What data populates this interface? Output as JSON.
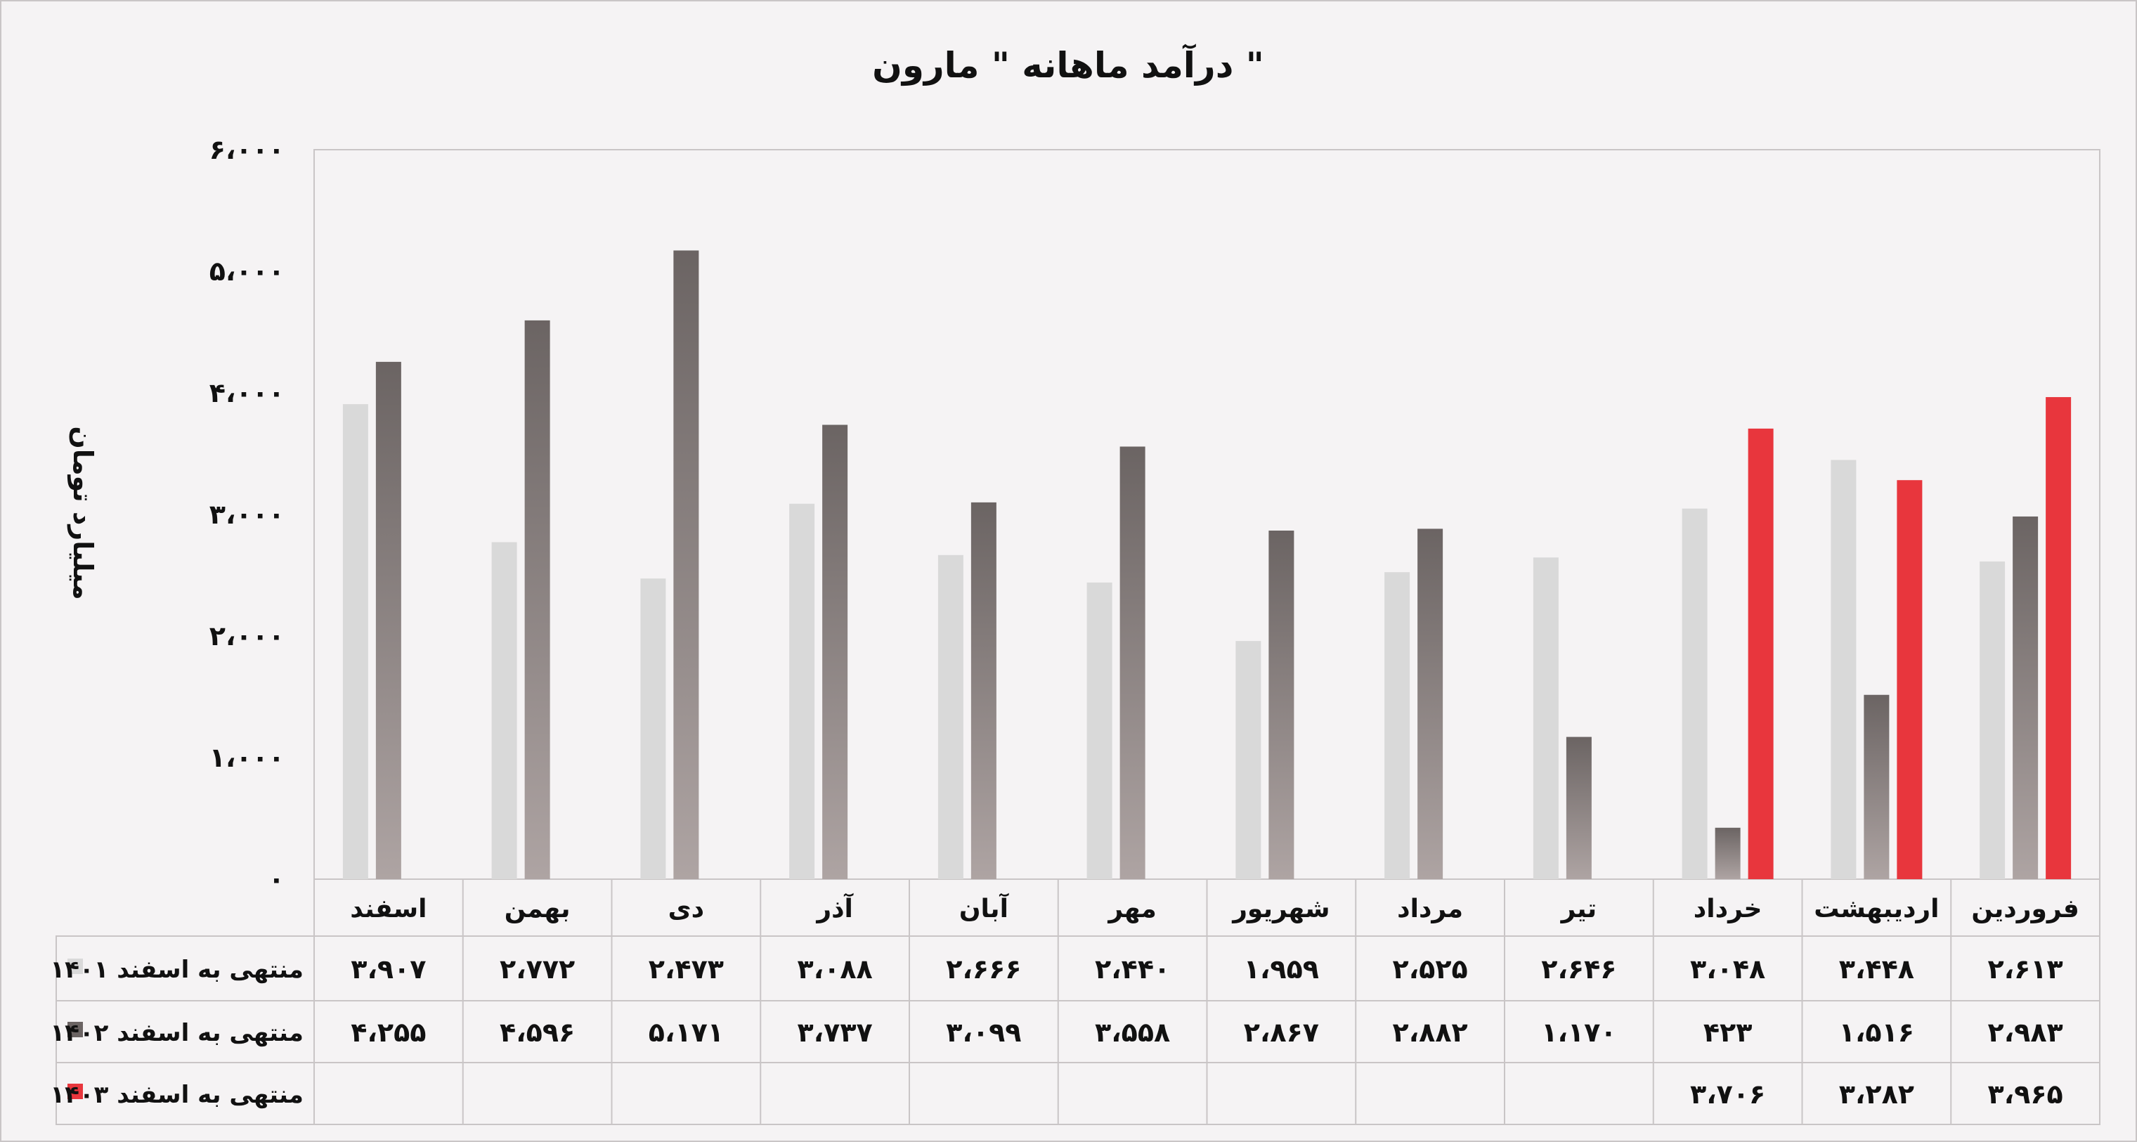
{
  "chart_data": {
    "type": "bar",
    "title": "درآمد ماهانه \" مارون \"",
    "ylabel": "میلیارد تومان",
    "ylim": [
      0,
      6000
    ],
    "yticks": [
      "۰",
      "۱،۰۰۰",
      "۲،۰۰۰",
      "۳،۰۰۰",
      "۴،۰۰۰",
      "۵،۰۰۰",
      "۶،۰۰۰"
    ],
    "categories": [
      "فروردین",
      "اردیبهشت",
      "خرداد",
      "تیر",
      "مرداد",
      "شهریور",
      "مهر",
      "آبان",
      "آذر",
      "دی",
      "بهمن",
      "اسفند"
    ],
    "series": [
      {
        "name": "منتهی به اسفند ۱۴۰۱",
        "color": "#d9d9d9",
        "values": [
          2613,
          3448,
          3048,
          2646,
          2525,
          1959,
          2440,
          2666,
          3088,
          2473,
          2772,
          3907
        ],
        "labels": [
          "۲،۶۱۳",
          "۳،۴۴۸",
          "۳،۰۴۸",
          "۲،۶۴۶",
          "۲،۵۲۵",
          "۱،۹۵۹",
          "۲،۴۴۰",
          "۲،۶۶۶",
          "۳،۰۸۸",
          "۲،۴۷۳",
          "۲،۷۷۲",
          "۳،۹۰۷"
        ]
      },
      {
        "name": "منتهی به اسفند ۱۴۰۲",
        "color": "#6b6463",
        "values": [
          2983,
          1516,
          423,
          1170,
          2882,
          2867,
          3558,
          3099,
          3737,
          5171,
          4596,
          4255
        ],
        "labels": [
          "۲،۹۸۳",
          "۱،۵۱۶",
          "۴۲۳",
          "۱،۱۷۰",
          "۲،۸۸۲",
          "۲،۸۶۷",
          "۳،۵۵۸",
          "۳،۰۹۹",
          "۳،۷۳۷",
          "۵،۱۷۱",
          "۴،۵۹۶",
          "۴،۲۵۵"
        ]
      },
      {
        "name": "منتهی به اسفند ۱۴۰۳",
        "color": "#e8363d",
        "values": [
          3965,
          3282,
          3706,
          null,
          null,
          null,
          null,
          null,
          null,
          null,
          null,
          null
        ],
        "labels": [
          "۳،۹۶۵",
          "۳،۲۸۲",
          "۳،۷۰۶",
          "",
          "",
          "",
          "",
          "",
          "",
          "",
          "",
          ""
        ]
      }
    ],
    "grid": false,
    "legend": "data-table-below"
  }
}
